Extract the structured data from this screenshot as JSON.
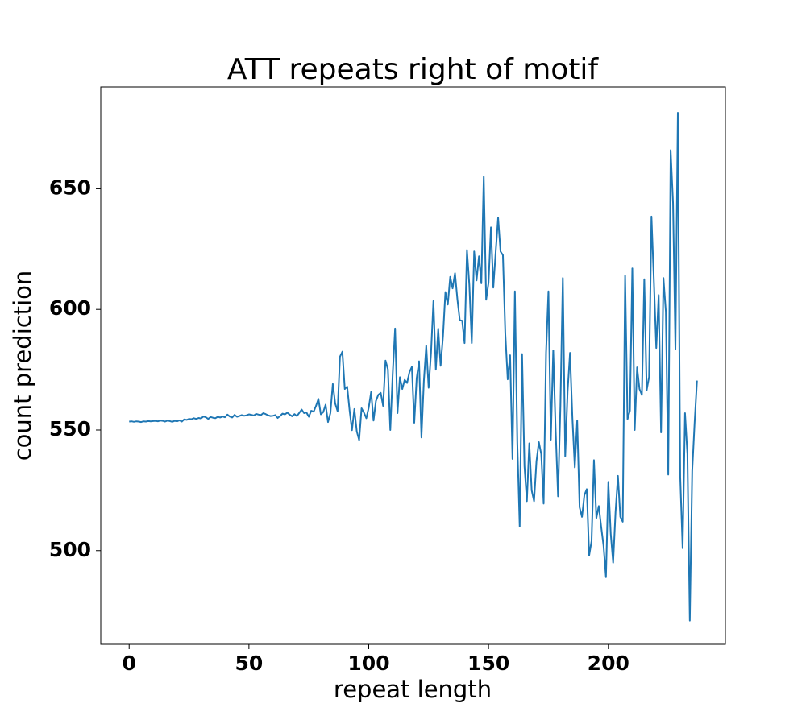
{
  "chart_data": {
    "type": "line",
    "title": "ATT repeats right of motif",
    "x_label": "repeat length",
    "y_label": "count prediction",
    "color": "#1f77b4",
    "x": [
      0,
      1,
      2,
      3,
      4,
      5,
      6,
      7,
      8,
      9,
      10,
      11,
      12,
      13,
      14,
      15,
      16,
      17,
      18,
      19,
      20,
      21,
      22,
      23,
      24,
      25,
      26,
      27,
      28,
      29,
      30,
      31,
      32,
      33,
      34,
      35,
      36,
      37,
      38,
      39,
      40,
      41,
      42,
      43,
      44,
      45,
      46,
      47,
      48,
      49,
      50,
      51,
      52,
      53,
      54,
      55,
      56,
      57,
      58,
      59,
      60,
      61,
      62,
      63,
      64,
      65,
      66,
      67,
      68,
      69,
      70,
      71,
      72,
      73,
      74,
      75,
      76,
      77,
      78,
      79,
      80,
      81,
      82,
      83,
      84,
      85,
      86,
      87,
      88,
      89,
      90,
      91,
      92,
      93,
      94,
      95,
      96,
      97,
      98,
      99,
      100,
      101,
      102,
      103,
      104,
      105,
      106,
      107,
      108,
      109,
      110,
      111,
      112,
      113,
      114,
      115,
      116,
      117,
      118,
      119,
      120,
      121,
      122,
      123,
      124,
      125,
      126,
      127,
      128,
      129,
      130,
      131,
      132,
      133,
      134,
      135,
      136,
      137,
      138,
      139,
      140,
      141,
      142,
      143,
      144,
      145,
      146,
      147,
      148,
      149,
      150,
      151,
      152,
      153,
      154,
      155,
      156,
      157,
      158,
      159,
      160,
      161,
      162,
      163,
      164,
      165,
      166,
      167,
      168,
      169,
      170,
      171,
      172,
      173,
      174,
      175,
      176,
      177,
      178,
      179,
      180,
      181,
      182,
      183,
      184,
      185,
      186,
      187,
      188,
      189,
      190,
      191,
      192,
      193,
      194,
      195,
      196,
      197,
      198,
      199,
      200,
      201,
      202,
      203,
      204,
      205,
      206,
      207,
      208,
      209,
      210,
      211,
      212,
      213,
      214,
      215,
      216,
      217,
      218,
      219,
      220,
      221,
      222,
      223,
      224,
      225,
      226,
      227,
      228,
      229,
      230,
      231,
      232,
      233,
      234,
      235,
      236,
      237
    ],
    "values": [
      553.5,
      553.6,
      553.4,
      553.6,
      553.5,
      553.3,
      553.6,
      553.5,
      553.7,
      553.6,
      553.7,
      553.8,
      553.6,
      553.9,
      553.8,
      553.5,
      553.9,
      553.7,
      553.4,
      553.8,
      553.6,
      554.0,
      553.5,
      554.4,
      554.2,
      554.6,
      554.5,
      554.9,
      554.6,
      555.0,
      554.8,
      555.6,
      555.3,
      554.6,
      555.4,
      555.1,
      554.9,
      555.5,
      555.2,
      555.6,
      555.3,
      556.4,
      555.6,
      555.2,
      556.3,
      555.5,
      555.8,
      556.2,
      555.9,
      556.1,
      556.5,
      556.3,
      556.0,
      556.7,
      556.4,
      556.2,
      557.0,
      556.6,
      556.1,
      555.8,
      555.9,
      556.2,
      555.0,
      555.8,
      556.8,
      556.5,
      557.2,
      556.4,
      555.7,
      556.6,
      555.8,
      557.1,
      558.5,
      557.0,
      557.3,
      555.5,
      558.0,
      557.6,
      560.0,
      562.9,
      556.5,
      557.4,
      560.5,
      553.3,
      557.0,
      569.1,
      561.0,
      557.8,
      580.4,
      582.5,
      567.0,
      568.0,
      558.2,
      549.9,
      558.7,
      549.5,
      545.8,
      559.0,
      557.2,
      554.9,
      559.3,
      565.8,
      553.9,
      562.0,
      564.6,
      565.4,
      560.0,
      578.8,
      575.2,
      550.0,
      573.3,
      592.1,
      557.0,
      571.9,
      567.0,
      570.8,
      569.5,
      574.0,
      576.2,
      553.0,
      571.4,
      578.5,
      546.9,
      570.2,
      585.0,
      567.5,
      582.0,
      603.5,
      575.0,
      592.0,
      576.6,
      589.0,
      607.2,
      602.0,
      613.5,
      608.7,
      615.0,
      604.2,
      595.5,
      595.3,
      586.0,
      624.6,
      610.0,
      586.0,
      624.0,
      612.0,
      622.0,
      610.8,
      655.0,
      604.0,
      611.0,
      634.0,
      609.0,
      624.0,
      638.0,
      624.0,
      622.5,
      590.0,
      571.0,
      581.0,
      538.0,
      607.5,
      545.0,
      510.0,
      581.5,
      535.0,
      520.5,
      544.5,
      525.0,
      520.5,
      537.0,
      545.0,
      540.0,
      519.5,
      582.0,
      607.5,
      546.0,
      583.0,
      550.0,
      522.5,
      560.0,
      613.0,
      539.0,
      566.0,
      582.0,
      555.0,
      534.5,
      554.0,
      518.0,
      514.0,
      523.0,
      525.5,
      498.0,
      504.0,
      537.5,
      513.5,
      518.5,
      510.0,
      502.0,
      489.0,
      528.5,
      507.0,
      495.0,
      516.0,
      531.0,
      514.0,
      512.0,
      614.0,
      554.5,
      558.0,
      617.0,
      550.0,
      576.0,
      567.0,
      564.5,
      612.5,
      566.5,
      572.0,
      638.5,
      612.0,
      584.0,
      606.0,
      549.0,
      613.0,
      599.0,
      531.5,
      666.0,
      644.0,
      583.5,
      681.5,
      530.5,
      501.0,
      557.0,
      540.0,
      471.0,
      533.0,
      553.0,
      570.5
    ],
    "xlim": [
      -11.85,
      248.85
    ],
    "xticks": [
      0,
      50,
      100,
      150,
      200
    ],
    "ylim": [
      461.2,
      692.2
    ],
    "yticks": [
      500,
      550,
      600,
      650
    ]
  }
}
